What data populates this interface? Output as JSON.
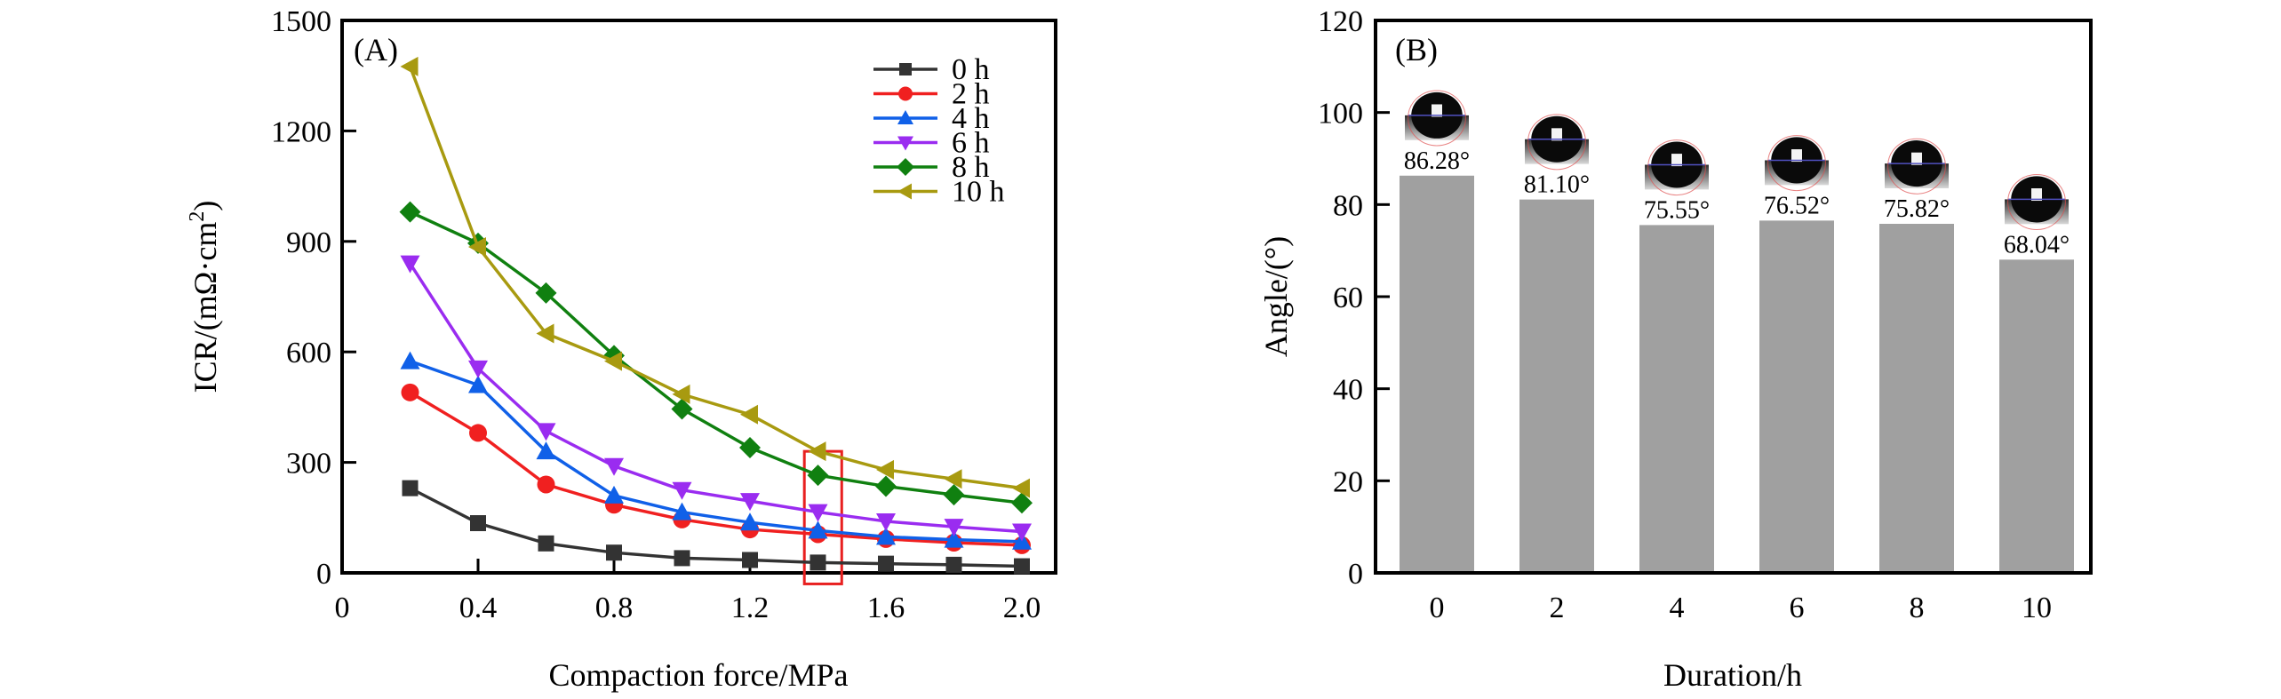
{
  "chart_data": [
    {
      "id": "A",
      "type": "line",
      "panel_label": "(A)",
      "title": "",
      "xlabel": "Compaction force/MPa",
      "ylabel": "ICR/(mΩ·cm²)",
      "ylabel_main": "ICR/(mΩ·cm",
      "ylabel_sup": "2",
      "ylabel_end": ")",
      "xlim": [
        0,
        2.1
      ],
      "ylim": [
        0,
        1500
      ],
      "xticks": [
        0,
        0.4,
        0.8,
        1.2,
        1.6,
        2.0
      ],
      "xtick_labels": [
        "0",
        "0.4",
        "0.8",
        "1.2",
        "1.6",
        "2.0"
      ],
      "yticks": [
        0,
        300,
        600,
        900,
        1200,
        1500
      ],
      "ytick_labels": [
        "0",
        "300",
        "600",
        "900",
        "1200",
        "1500"
      ],
      "grid": false,
      "legend_position": "top-right",
      "x": [
        0.2,
        0.4,
        0.6,
        0.8,
        1.0,
        1.2,
        1.4,
        1.6,
        1.8,
        2.0
      ],
      "series": [
        {
          "name": "0 h",
          "color": "#333333",
          "marker": "square",
          "values": [
            230,
            135,
            80,
            55,
            40,
            35,
            28,
            25,
            22,
            18
          ]
        },
        {
          "name": "2 h",
          "color": "#f02020",
          "marker": "circle",
          "values": [
            490,
            380,
            240,
            185,
            145,
            118,
            105,
            92,
            82,
            75
          ]
        },
        {
          "name": "4 h",
          "color": "#1060e8",
          "marker": "triangle-up",
          "values": [
            575,
            510,
            330,
            210,
            165,
            137,
            115,
            98,
            90,
            85
          ]
        },
        {
          "name": "6 h",
          "color": "#9a2cf0",
          "marker": "triangle-down",
          "values": [
            840,
            555,
            385,
            290,
            225,
            195,
            165,
            140,
            125,
            112
          ]
        },
        {
          "name": "8 h",
          "color": "#108010",
          "marker": "diamond",
          "values": [
            980,
            895,
            760,
            590,
            445,
            340,
            265,
            235,
            212,
            190
          ]
        },
        {
          "name": "10 h",
          "color": "#a89a10",
          "marker": "triangle-left",
          "values": [
            1375,
            885,
            650,
            575,
            485,
            430,
            330,
            280,
            255,
            230
          ]
        }
      ],
      "annotations": [
        {
          "type": "highlight-box",
          "color": "#e82020",
          "x_range": [
            1.36,
            1.47
          ],
          "y_range": [
            -30,
            330
          ]
        }
      ]
    },
    {
      "id": "B",
      "type": "bar",
      "panel_label": "(B)",
      "title": "",
      "xlabel": "Duration/h",
      "ylabel": "Angle/(°)",
      "categories": [
        "0",
        "2",
        "4",
        "6",
        "8",
        "10"
      ],
      "values": [
        86.28,
        81.1,
        75.55,
        76.52,
        75.82,
        68.04
      ],
      "data_labels": [
        "86.28°",
        "81.10°",
        "75.55°",
        "76.52°",
        "75.82°",
        "68.04°"
      ],
      "bar_color": "#a0a0a0",
      "ylim": [
        0,
        120
      ],
      "yticks": [
        0,
        20,
        40,
        60,
        80,
        100,
        120
      ],
      "ytick_labels": [
        "0",
        "20",
        "40",
        "60",
        "80",
        "100",
        "120"
      ],
      "grid": false,
      "insets": "water droplet contact-angle photographs above each bar"
    }
  ]
}
